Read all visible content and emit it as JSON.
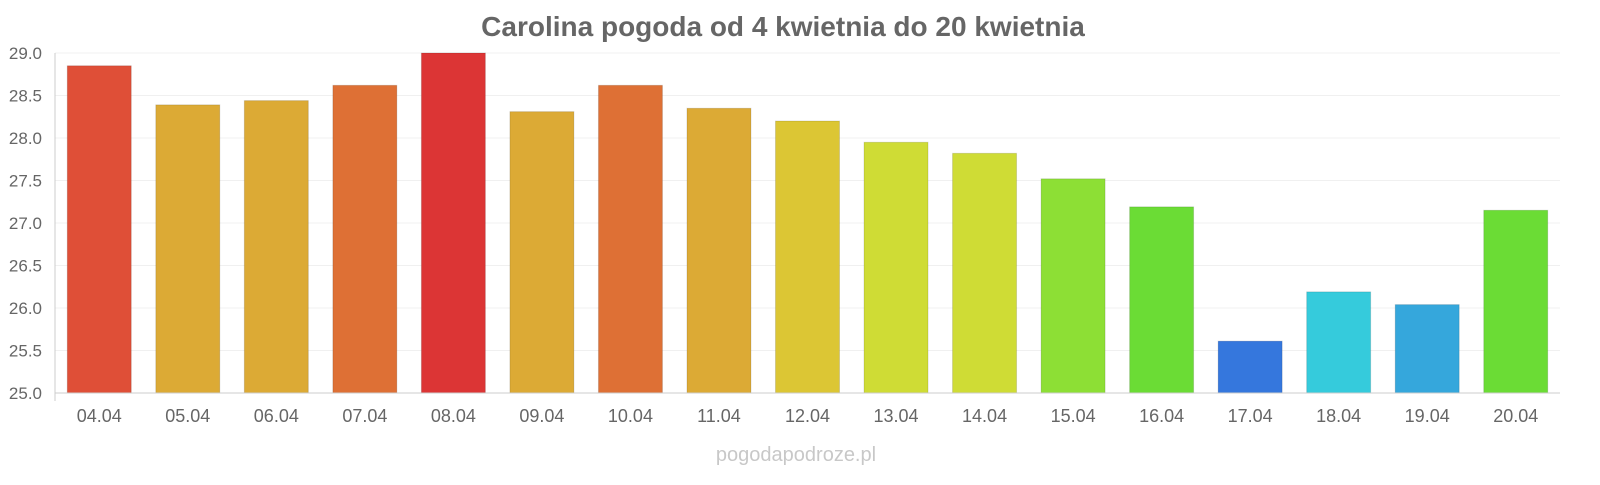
{
  "chart_data": {
    "type": "bar",
    "title": "Carolina pogoda od 4 kwietnia do 20 kwietnia",
    "xlabel": "",
    "ylabel": "",
    "ylim": [
      25.0,
      29.0
    ],
    "yticks": [
      "25.0",
      "25.5",
      "26.0",
      "26.5",
      "27.0",
      "27.5",
      "28.0",
      "28.5",
      "29.0"
    ],
    "grid": true,
    "categories": [
      "04.04",
      "05.04",
      "06.04",
      "07.04",
      "08.04",
      "09.04",
      "10.04",
      "11.04",
      "12.04",
      "13.04",
      "14.04",
      "15.04",
      "16.04",
      "17.04",
      "18.04",
      "19.04",
      "20.04"
    ],
    "values": [
      28.85,
      28.39,
      28.44,
      28.62,
      29.0,
      28.31,
      28.62,
      28.35,
      28.2,
      27.95,
      27.82,
      27.52,
      27.19,
      25.61,
      26.19,
      26.04,
      27.15
    ],
    "colors": [
      "#df4f37",
      "#dcaa35",
      "#dcaa35",
      "#de7035",
      "#dc3535",
      "#dcaa35",
      "#de7035",
      "#dcaa35",
      "#dcc634",
      "#cfdc35",
      "#cfdc35",
      "#8ddf35",
      "#6bdc35",
      "#3577dd",
      "#35cbdc",
      "#35a7dc",
      "#6bdc35"
    ]
  },
  "watermark": "pogodapodroze.pl"
}
